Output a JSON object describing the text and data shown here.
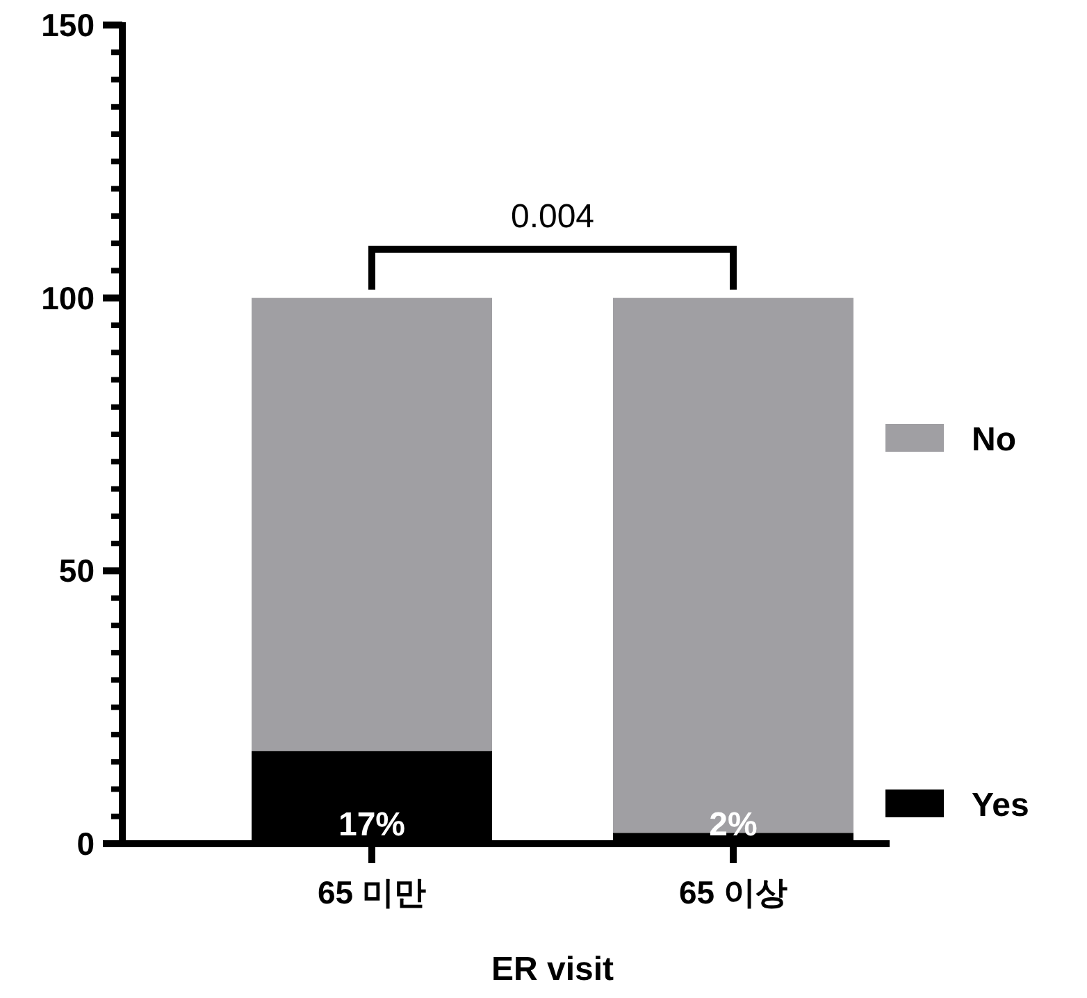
{
  "chart_data": {
    "type": "bar",
    "stacked": true,
    "xlabel": "ER visit",
    "categories": [
      "65 미만",
      "65 이상"
    ],
    "series": [
      {
        "name": "Yes",
        "color": "#000000",
        "values": [
          17,
          2
        ],
        "value_labels": [
          "17%",
          "2%"
        ]
      },
      {
        "name": "No",
        "color": "#a09fa3",
        "values": [
          83,
          98
        ]
      }
    ],
    "ylim": [
      0,
      150
    ],
    "yticks": [
      0,
      {
        "value": 5,
        "label": null
      },
      {
        "value": 10,
        "label": null
      },
      {
        "value": 15,
        "label": null
      },
      {
        "value": 20,
        "label": null
      },
      {
        "value": 25,
        "label": null
      },
      {
        "value": 30,
        "label": null
      },
      {
        "value": 35,
        "label": null
      },
      {
        "value": 40,
        "label": null
      },
      {
        "value": 45,
        "label": null
      },
      50,
      {
        "value": 55,
        "label": null
      },
      {
        "value": 60,
        "label": null
      },
      {
        "value": 65,
        "label": null
      },
      {
        "value": 70,
        "label": null
      },
      {
        "value": 75,
        "label": null
      },
      {
        "value": 80,
        "label": null
      },
      {
        "value": 85,
        "label": null
      },
      {
        "value": 90,
        "label": null
      },
      {
        "value": 95,
        "label": null
      },
      100,
      {
        "value": 105,
        "label": null
      },
      {
        "value": 110,
        "label": null
      },
      {
        "value": 115,
        "label": null
      },
      {
        "value": 120,
        "label": null
      },
      {
        "value": 125,
        "label": null
      },
      {
        "value": 130,
        "label": null
      },
      {
        "value": 135,
        "label": null
      },
      {
        "value": 140,
        "label": null
      },
      {
        "value": 145,
        "label": null
      },
      150
    ],
    "grid": false,
    "legend": "right",
    "annotations": [
      "0.004"
    ]
  }
}
